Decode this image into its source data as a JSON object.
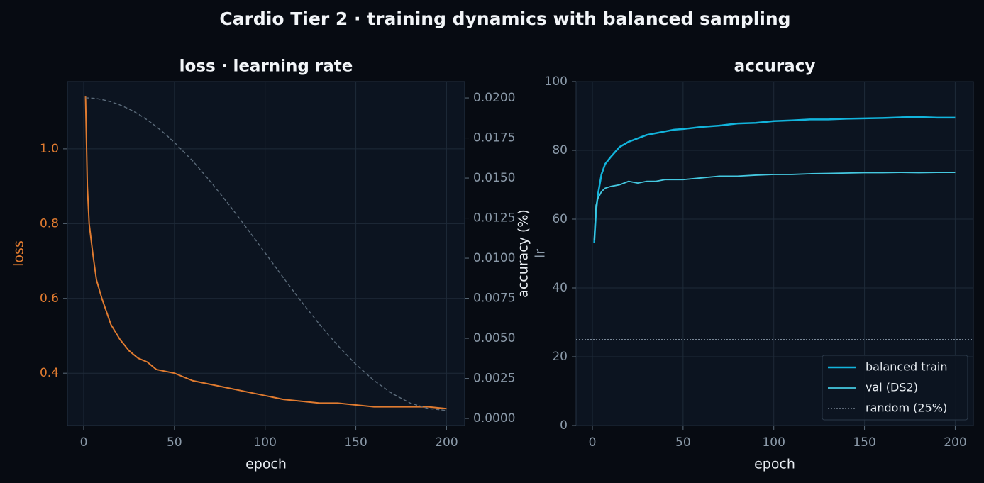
{
  "title": "Cardio Tier 2 · training dynamics with balanced sampling",
  "chart_data": [
    {
      "type": "line",
      "title": "loss · learning rate",
      "xlabel": "epoch",
      "ylabel": "loss",
      "y2label": "lr",
      "x": [
        1,
        2,
        3,
        5,
        7,
        10,
        15,
        20,
        25,
        30,
        35,
        40,
        45,
        50,
        60,
        70,
        80,
        90,
        100,
        110,
        120,
        130,
        140,
        150,
        160,
        170,
        180,
        190,
        200
      ],
      "xlim": [
        -9,
        210
      ],
      "xticks": [
        0,
        50,
        100,
        150,
        200
      ],
      "ylim": [
        0.26,
        1.18
      ],
      "yticks": [
        0.4,
        0.6,
        0.8,
        {
          "value": 1,
          "label": "1.0"
        }
      ],
      "y2lim": [
        -0.00044,
        0.02102
      ],
      "y2ticks": [
        {
          "value": 0,
          "label": "0.0000"
        },
        {
          "value": 0.0025,
          "label": "0.0025"
        },
        {
          "value": 0.005,
          "label": "0.0050"
        },
        {
          "value": 0.0075,
          "label": "0.0075"
        },
        {
          "value": 0.01,
          "label": "0.0100"
        },
        {
          "value": 0.0125,
          "label": "0.0125"
        },
        {
          "value": 0.015,
          "label": "0.0150"
        },
        {
          "value": 0.0175,
          "label": "0.0175"
        },
        {
          "value": 0.02,
          "label": "0.0200"
        }
      ],
      "grid": true,
      "series": [
        {
          "color": "#e07b30",
          "values": [
            1.14,
            0.9,
            0.8,
            0.72,
            0.65,
            0.6,
            0.53,
            0.49,
            0.46,
            0.44,
            0.43,
            0.41,
            0.405,
            0.4,
            0.38,
            0.37,
            0.36,
            0.35,
            0.34,
            0.33,
            0.325,
            0.32,
            0.32,
            0.315,
            0.31,
            0.31,
            0.31,
            0.31,
            0.305
          ]
        },
        {
          "color": "#5b6b7a",
          "axis": "y2",
          "dashed": true,
          "values": [
            0.02,
            0.02,
            0.019995,
            0.01998,
            0.01996,
            0.0199,
            0.01976,
            0.01956,
            0.01931,
            0.019,
            0.01863,
            0.01821,
            0.01774,
            0.01722,
            0.01608,
            0.01476,
            0.01335,
            0.01186,
            0.01033,
            0.00879,
            0.00729,
            0.00587,
            0.00456,
            0.00338,
            0.00237,
            0.00156,
            0.00096,
            0.00062,
            0.0005
          ]
        }
      ]
    },
    {
      "type": "line",
      "title": "accuracy",
      "xlabel": "epoch",
      "ylabel": "accuracy (%)",
      "x": [
        1,
        2,
        3,
        5,
        7,
        10,
        15,
        20,
        25,
        30,
        35,
        40,
        45,
        50,
        60,
        70,
        80,
        90,
        100,
        110,
        120,
        130,
        140,
        150,
        160,
        170,
        180,
        190,
        200
      ],
      "xlim": [
        -9,
        210
      ],
      "xticks": [
        0,
        50,
        100,
        150,
        200
      ],
      "ylim": [
        0,
        100
      ],
      "yticks": [
        0,
        20,
        40,
        60,
        80,
        100
      ],
      "grid": true,
      "legend": "lower right",
      "series": [
        {
          "name": "balanced train",
          "color": "#12b4dc",
          "width": 2.5,
          "values": [
            53,
            62,
            67,
            73,
            76,
            78,
            81,
            82.5,
            83.5,
            84.5,
            85,
            85.5,
            86,
            86.2,
            86.8,
            87.2,
            87.8,
            88,
            88.5,
            88.7,
            89,
            89,
            89.2,
            89.3,
            89.4,
            89.6,
            89.7,
            89.5,
            89.5
          ]
        },
        {
          "name": "val (DS2)",
          "color": "#45c8e0",
          "width": 1.8,
          "values": [
            54,
            64,
            66,
            68,
            69,
            69.5,
            70,
            71,
            70.5,
            71,
            71,
            71.5,
            71.5,
            71.5,
            72,
            72.5,
            72.5,
            72.8,
            73,
            73,
            73.2,
            73.3,
            73.4,
            73.5,
            73.5,
            73.6,
            73.5,
            73.6,
            73.6
          ]
        }
      ],
      "hline": {
        "name": "random (25%)",
        "value": 25,
        "color": "#8a99a8"
      }
    }
  ]
}
